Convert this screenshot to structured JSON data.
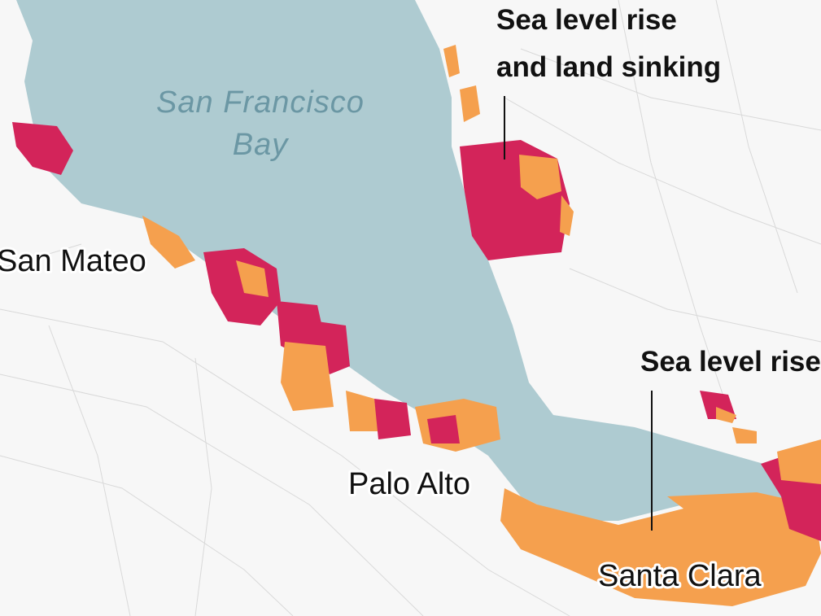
{
  "annotations": [
    {
      "lines": [
        "Sea level rise",
        "and land sinking"
      ]
    },
    {
      "lines": [
        "Sea level rise"
      ]
    }
  ],
  "water_label": [
    "San Francisco",
    "Bay"
  ],
  "cities": [
    "San Mateo",
    "Palo Alto",
    "Santa Clara"
  ]
}
